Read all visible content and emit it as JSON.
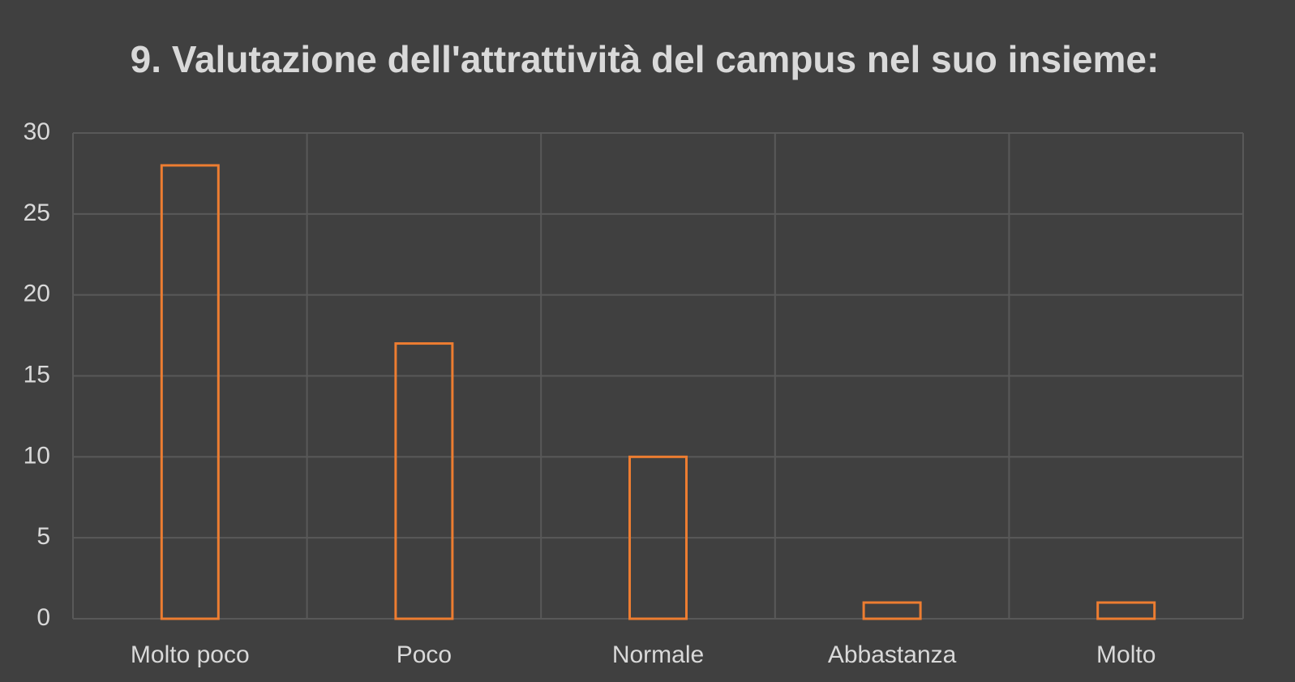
{
  "chart_data": {
    "type": "bar",
    "title": "9. Valutazione dell'attrattività del campus nel suo insieme:",
    "categories": [
      "Molto poco",
      "Poco",
      "Normale",
      "Abbastanza",
      "Molto"
    ],
    "values": [
      28,
      17,
      10,
      1,
      1
    ],
    "color": "#ed7d31",
    "ylim": [
      0,
      30
    ],
    "yticks": [
      0,
      5,
      10,
      15,
      20,
      25,
      30
    ],
    "grid": true
  }
}
